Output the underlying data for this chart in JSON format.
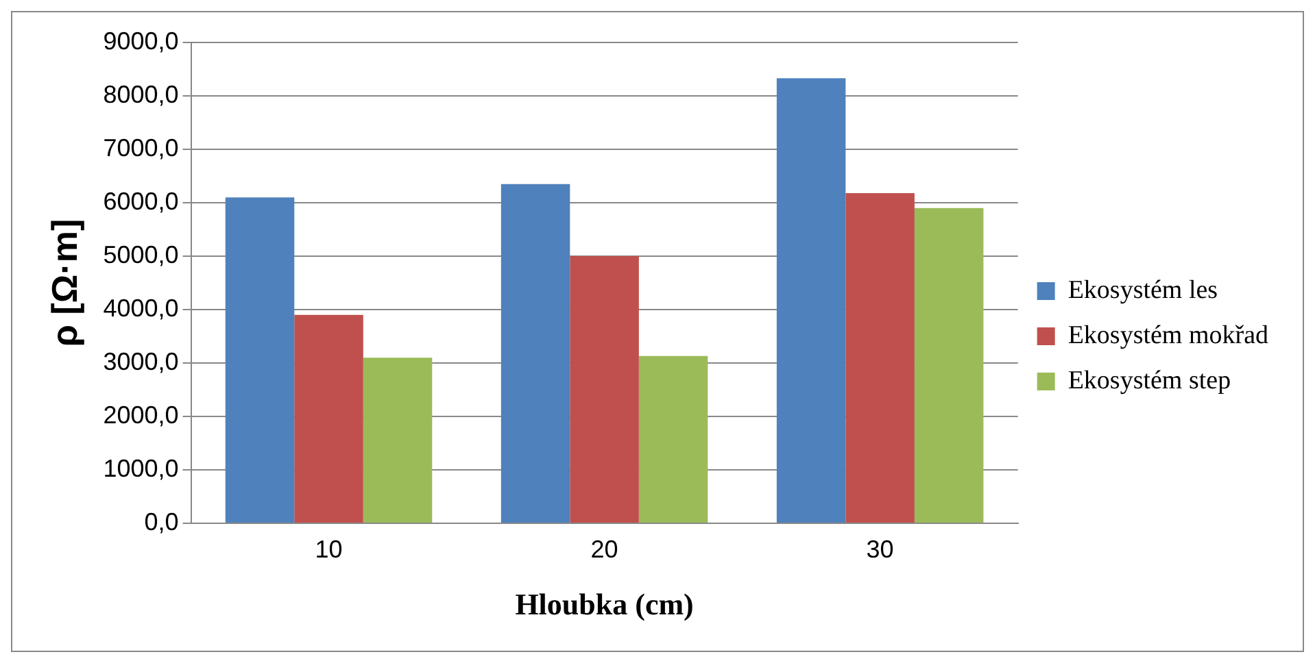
{
  "chart_data": {
    "type": "bar",
    "xlabel": "Hloubka (cm)",
    "ylabel": "ρ [Ω·m]",
    "categories": [
      "10",
      "20",
      "30"
    ],
    "series": [
      {
        "name": "Ekosystém les",
        "color": "#4f81bd",
        "values": [
          6100,
          6350,
          8330
        ]
      },
      {
        "name": "Ekosystém mokřad",
        "color": "#c0504d",
        "values": [
          3900,
          5000,
          6180
        ]
      },
      {
        "name": "Ekosystém step",
        "color": "#9bbb59",
        "values": [
          3100,
          3130,
          5900
        ]
      }
    ],
    "ylim": [
      0,
      9000
    ],
    "yticks": [
      {
        "value": 0,
        "label": "0,0"
      },
      {
        "value": 1000,
        "label": "1000,0"
      },
      {
        "value": 2000,
        "label": "2000,0"
      },
      {
        "value": 3000,
        "label": "3000,0"
      },
      {
        "value": 4000,
        "label": "4000,0"
      },
      {
        "value": 5000,
        "label": "5000,0"
      },
      {
        "value": 6000,
        "label": "6000,0"
      },
      {
        "value": 7000,
        "label": "7000,0"
      },
      {
        "value": 8000,
        "label": "8000,0"
      },
      {
        "value": 9000,
        "label": "9000,0"
      }
    ],
    "grid": "y",
    "legend": "right"
  }
}
